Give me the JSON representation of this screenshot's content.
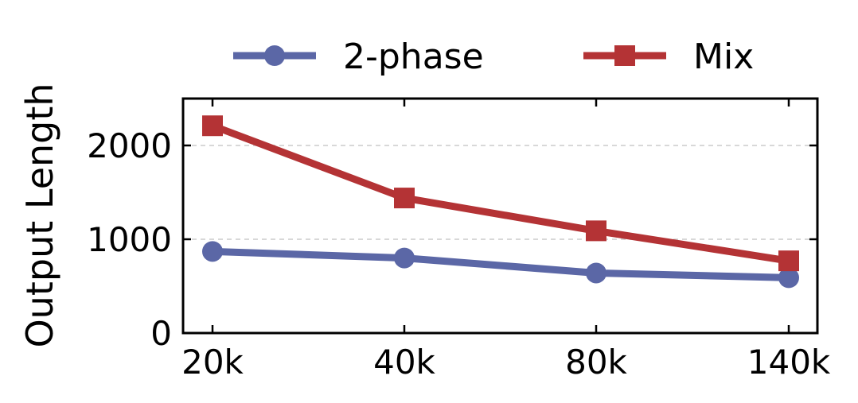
{
  "chart_data": {
    "type": "line",
    "categories": [
      "20k",
      "40k",
      "80k",
      "140k"
    ],
    "ylabel": "Output Length",
    "xlabel": "",
    "ylim": [
      0,
      2500
    ],
    "yticks": [
      0,
      1000,
      2000
    ],
    "grid": "horizontal dashed",
    "legend_position": "top",
    "series": [
      {
        "name": "2-phase",
        "values": [
          870,
          800,
          640,
          590
        ],
        "color": "#5b67a6",
        "marker": "circle"
      },
      {
        "name": "Mix",
        "values": [
          2210,
          1440,
          1090,
          770
        ],
        "color": "#b43335",
        "marker": "square"
      }
    ]
  }
}
